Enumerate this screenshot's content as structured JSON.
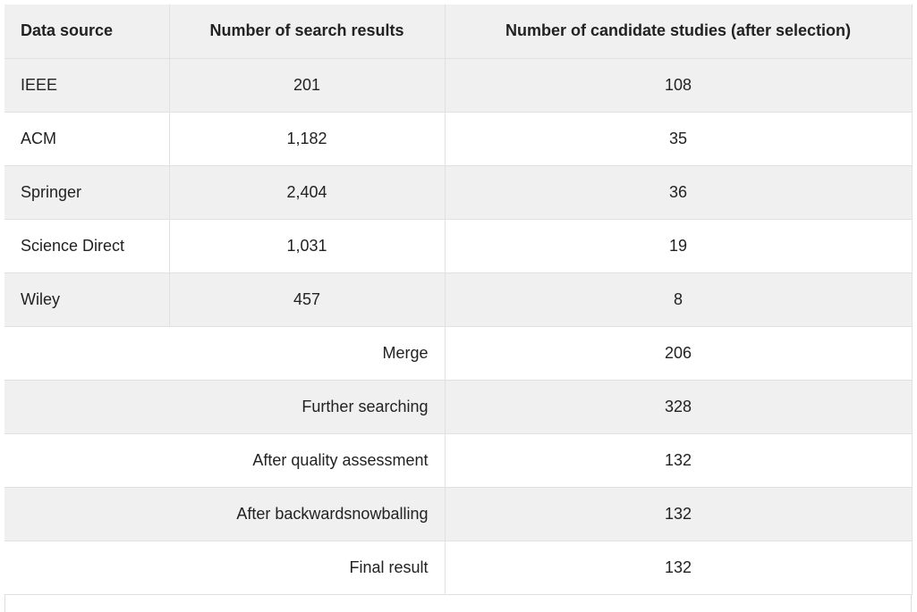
{
  "table": {
    "headers": [
      "Data source",
      "Number of search results",
      "Number of candidate studies (after selection)"
    ],
    "source_rows": [
      {
        "source": "IEEE",
        "results": "201",
        "candidates": "108"
      },
      {
        "source": "ACM",
        "results": "1,182",
        "candidates": "35"
      },
      {
        "source": "Springer",
        "results": "2,404",
        "candidates": "36"
      },
      {
        "source": "Science Direct",
        "results": "1,031",
        "candidates": "19"
      },
      {
        "source": "Wiley",
        "results": "457",
        "candidates": "8"
      }
    ],
    "summary_rows": [
      {
        "label": "Merge",
        "value": "206"
      },
      {
        "label": "Further searching",
        "value": "328"
      },
      {
        "label": "After quality assessment",
        "value": "132"
      },
      {
        "label": "After backwardsnowballing",
        "value": "132"
      },
      {
        "label": "Final result",
        "value": "132"
      }
    ]
  }
}
